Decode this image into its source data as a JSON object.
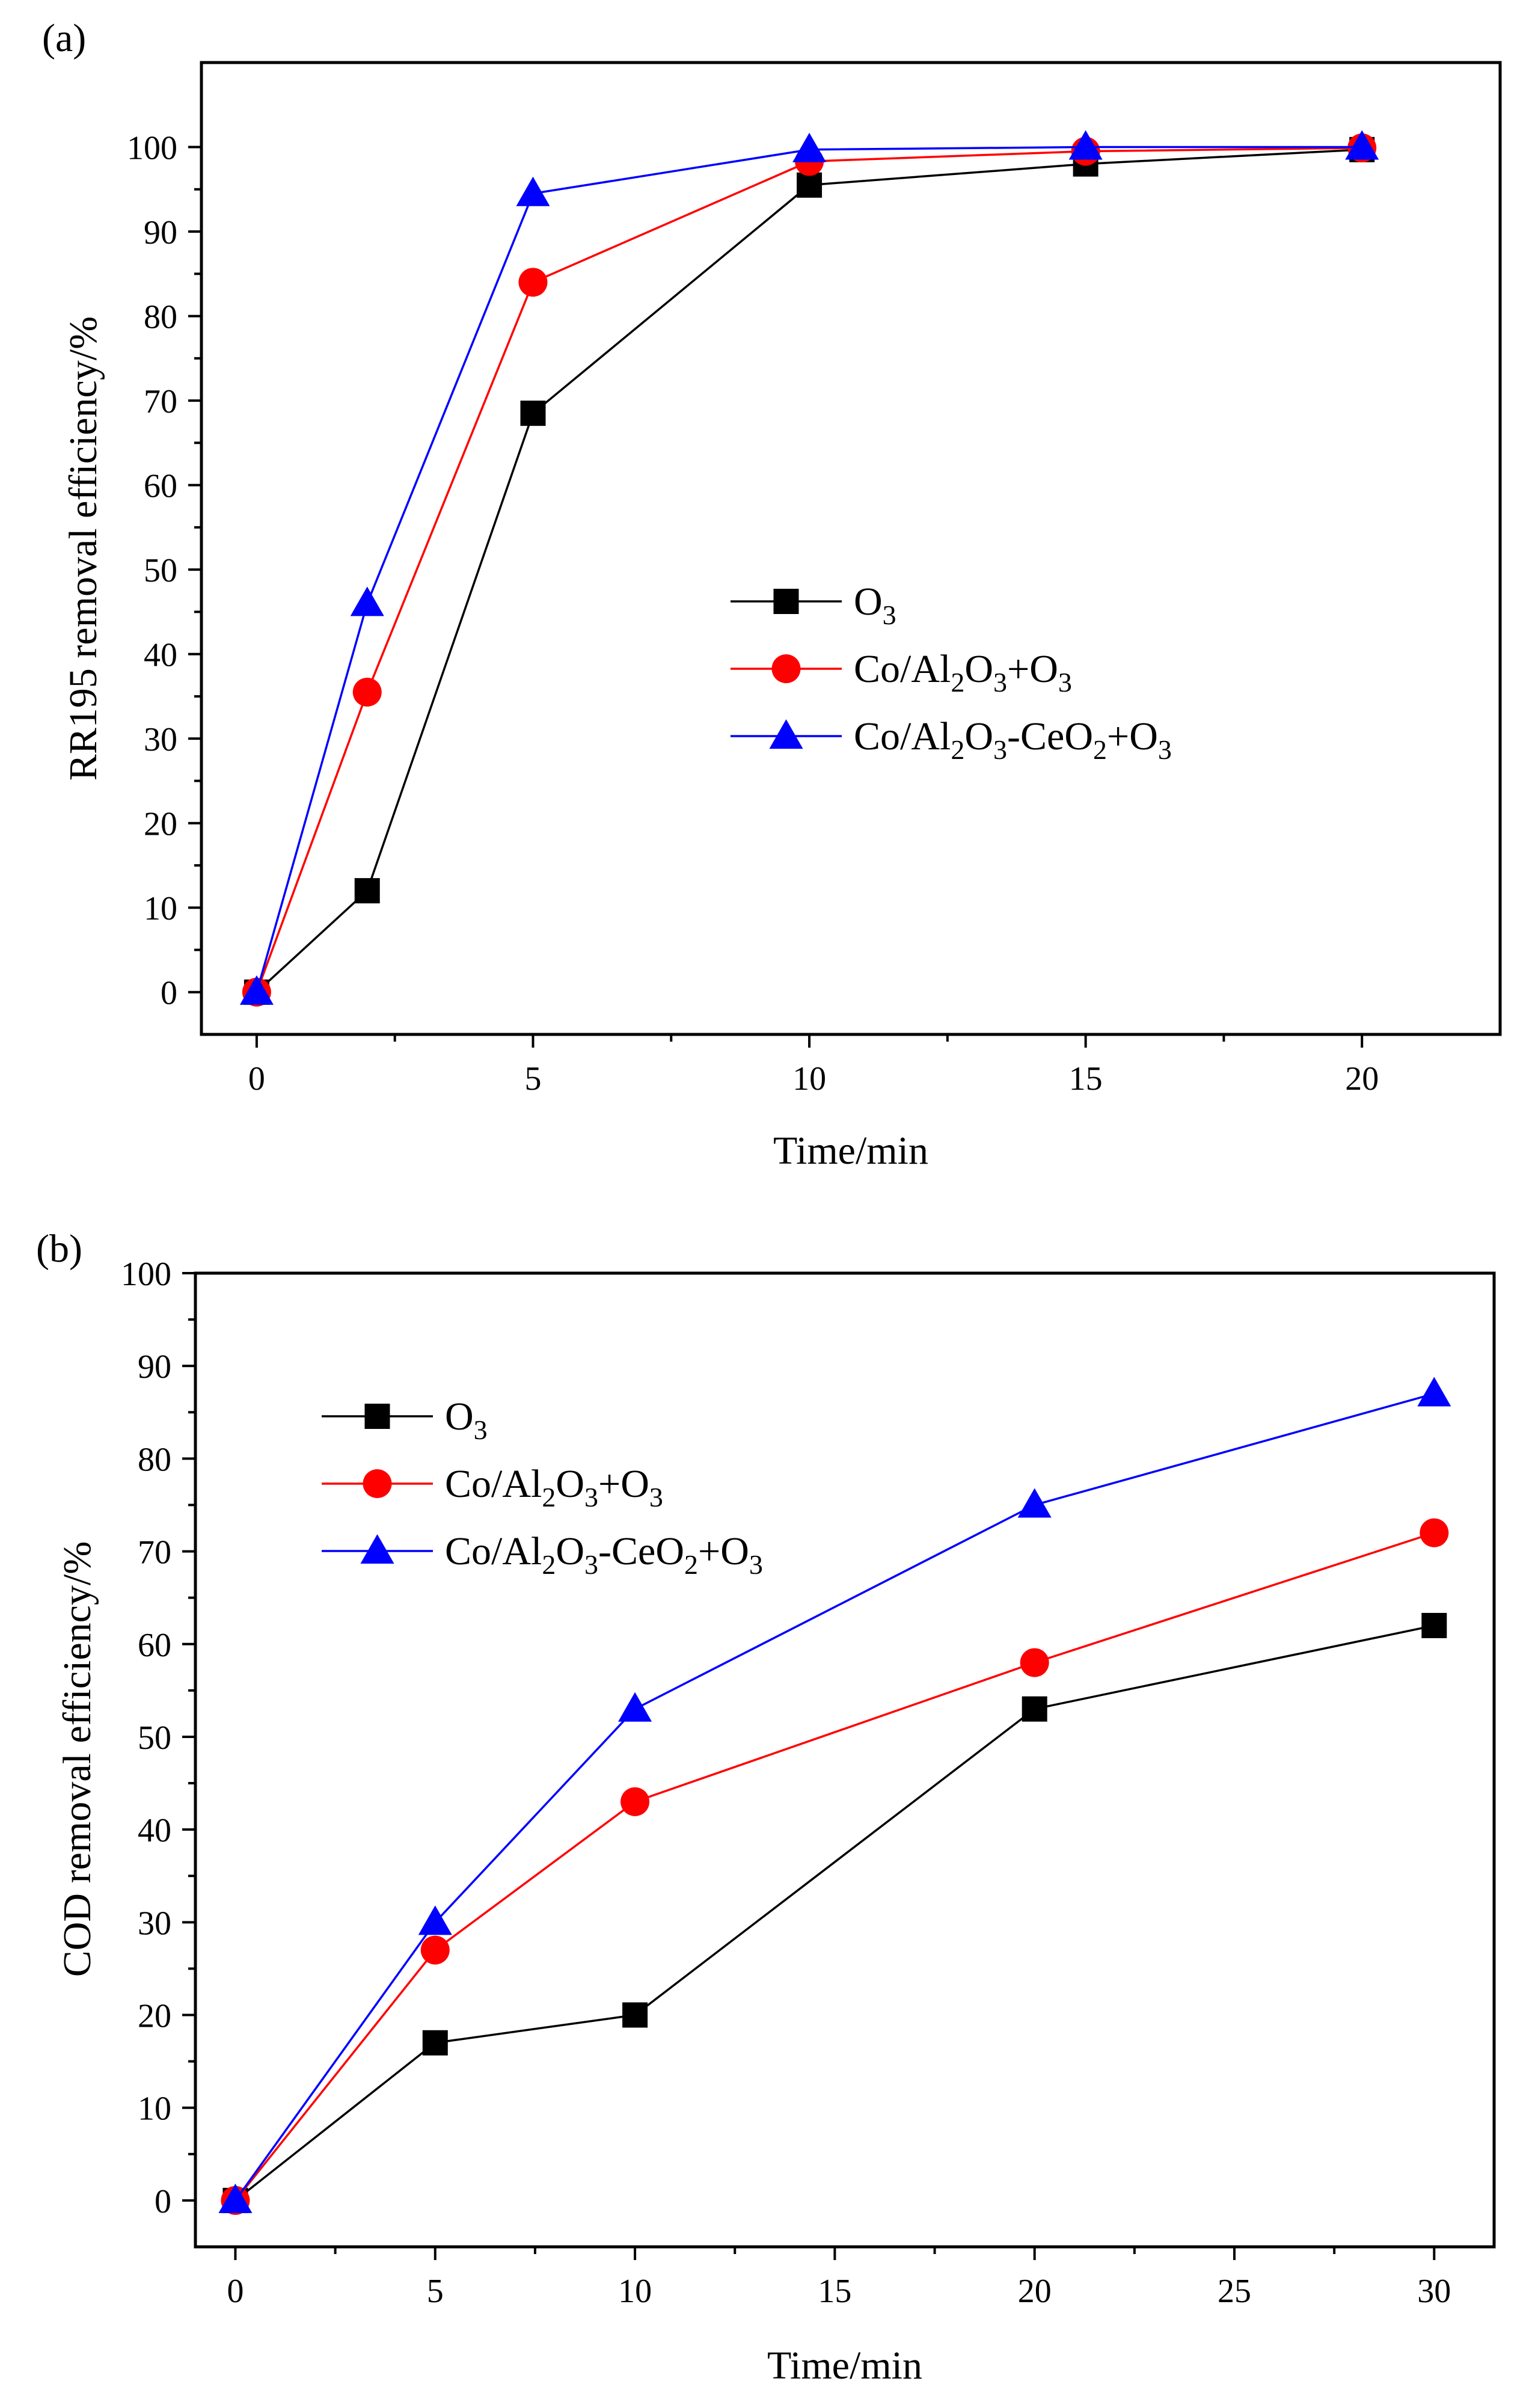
{
  "chart_data": [
    {
      "type": "line",
      "panel_label": "(a)",
      "xlabel": "Time/min",
      "ylabel": "RR195 removal efficiency/%",
      "xlim": [
        -1,
        22.5
      ],
      "ylim": [
        -5,
        110
      ],
      "xticks": [
        0,
        5,
        10,
        15,
        20
      ],
      "xticklabels": [
        "0",
        "5",
        "10",
        "15",
        "20"
      ],
      "yticks": [
        0,
        10,
        20,
        30,
        40,
        50,
        60,
        70,
        80,
        90,
        100
      ],
      "yticklabels": [
        "0",
        "10",
        "20",
        "30",
        "40",
        "50",
        "60",
        "70",
        "80",
        "90",
        "100"
      ],
      "legend_position": "center-right",
      "series": [
        {
          "name": "O3",
          "legend": [
            {
              "t": "O"
            },
            {
              "t": "3",
              "sub": true
            }
          ],
          "color": "#000000",
          "marker": "square",
          "x": [
            0,
            2,
            5,
            10,
            15,
            20
          ],
          "values": [
            0,
            12,
            68.5,
            95.5,
            98,
            99.7
          ]
        },
        {
          "name": "Co/Al2O3+O3",
          "legend": [
            {
              "t": "Co/Al"
            },
            {
              "t": "2",
              "sub": true
            },
            {
              "t": "O"
            },
            {
              "t": "3",
              "sub": true
            },
            {
              "t": "+O"
            },
            {
              "t": "3",
              "sub": true
            }
          ],
          "color": "#ff0000",
          "marker": "circle",
          "x": [
            0,
            2,
            5,
            10,
            15,
            20
          ],
          "values": [
            0,
            35.5,
            84,
            98.3,
            99.5,
            99.9
          ]
        },
        {
          "name": "Co/Al2O3-CeO2+O3",
          "legend": [
            {
              "t": "Co/Al"
            },
            {
              "t": "2",
              "sub": true
            },
            {
              "t": "O"
            },
            {
              "t": "3",
              "sub": true
            },
            {
              "t": "-CeO"
            },
            {
              "t": "2",
              "sub": true
            },
            {
              "t": "+O"
            },
            {
              "t": "3",
              "sub": true
            }
          ],
          "color": "#0000ff",
          "marker": "triangle",
          "x": [
            0,
            2,
            5,
            10,
            15,
            20
          ],
          "values": [
            0,
            46,
            94.5,
            99.7,
            100,
            100
          ]
        }
      ]
    },
    {
      "type": "line",
      "panel_label": "(b)",
      "xlabel": "Time/min",
      "ylabel": "COD removal efficiency/%",
      "xlim": [
        -1,
        31.5
      ],
      "ylim": [
        -5,
        100
      ],
      "xticks": [
        0,
        5,
        10,
        15,
        20,
        25,
        30
      ],
      "xticklabels": [
        "0",
        "5",
        "10",
        "15",
        "20",
        "25",
        "30"
      ],
      "yticks": [
        0,
        10,
        20,
        30,
        40,
        50,
        60,
        70,
        80,
        90,
        100
      ],
      "yticklabels": [
        "0",
        "10",
        "20",
        "30",
        "40",
        "50",
        "60",
        "70",
        "80",
        "90",
        "100"
      ],
      "legend_position": "top-left",
      "series": [
        {
          "name": "O3",
          "legend": [
            {
              "t": "O"
            },
            {
              "t": "3",
              "sub": true
            }
          ],
          "color": "#000000",
          "marker": "square",
          "x": [
            0,
            5,
            10,
            20,
            30
          ],
          "values": [
            0,
            17,
            20,
            53,
            62
          ]
        },
        {
          "name": "Co/Al2O3+O3",
          "legend": [
            {
              "t": "Co/Al"
            },
            {
              "t": "2",
              "sub": true
            },
            {
              "t": "O"
            },
            {
              "t": "3",
              "sub": true
            },
            {
              "t": "+O"
            },
            {
              "t": "3",
              "sub": true
            }
          ],
          "color": "#ff0000",
          "marker": "circle",
          "x": [
            0,
            5,
            10,
            20,
            30
          ],
          "values": [
            0,
            27,
            43,
            58,
            72
          ]
        },
        {
          "name": "Co/Al2O3-CeO2+O3",
          "legend": [
            {
              "t": "Co/Al"
            },
            {
              "t": "2",
              "sub": true
            },
            {
              "t": "O"
            },
            {
              "t": "3",
              "sub": true
            },
            {
              "t": "-CeO"
            },
            {
              "t": "2",
              "sub": true
            },
            {
              "t": "+O"
            },
            {
              "t": "3",
              "sub": true
            }
          ],
          "color": "#0000ff",
          "marker": "triangle",
          "x": [
            0,
            5,
            10,
            20,
            30
          ],
          "values": [
            0,
            30,
            53,
            75,
            87
          ]
        }
      ]
    }
  ]
}
